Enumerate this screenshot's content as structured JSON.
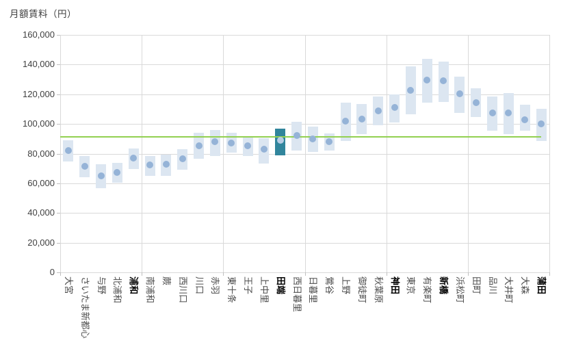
{
  "title": "月額賃料（円）",
  "chart_data": {
    "type": "bar",
    "subtype": "floating-range-bars-with-median-dot",
    "title": "月額賃料（円）",
    "xlabel": "",
    "ylabel": "月額賃料（円）",
    "ylim": [
      0,
      160000
    ],
    "ytick_step": 20000,
    "y_tick_labels": [
      "0",
      "20,000",
      "40,000",
      "60,000",
      "80,000",
      "100,000",
      "120,000",
      "140,000",
      "160,000"
    ],
    "grid": true,
    "legend_position": "none",
    "reference_line": {
      "value": 91500,
      "color": "#92D050",
      "extent_fraction": 0.983
    },
    "highlight_station": "田端",
    "categories": [
      "大宮",
      "さいたま新都心",
      "与野",
      "北浦和",
      "浦和",
      "南浦和",
      "蕨",
      "西川口",
      "川口",
      "赤羽",
      "東十条",
      "王子",
      "上中里",
      "田端",
      "西日暮里",
      "日暮里",
      "鶯谷",
      "上野",
      "御徒町",
      "秋葉原",
      "神田",
      "東京",
      "有楽町",
      "新橋",
      "浜松町",
      "田町",
      "品川",
      "大井町",
      "大森",
      "蒲田"
    ],
    "bold_categories": [
      "浦和",
      "田端",
      "神田",
      "新橋",
      "蒲田"
    ],
    "series": [
      {
        "name": "range_min",
        "values": [
          74500,
          64000,
          56500,
          60500,
          69500,
          65000,
          65000,
          69000,
          76500,
          78500,
          80500,
          78500,
          73500,
          79000,
          82000,
          81000,
          82000,
          88500,
          93000,
          99000,
          101000,
          106500,
          114500,
          115000,
          107500,
          104500,
          95500,
          93000,
          95500,
          88500
        ]
      },
      {
        "name": "median",
        "values": [
          82000,
          71500,
          65000,
          67500,
          77000,
          72500,
          73000,
          76500,
          85500,
          88000,
          87000,
          85500,
          83000,
          89000,
          92000,
          90000,
          88000,
          102000,
          103500,
          109000,
          111000,
          122500,
          129500,
          129000,
          120500,
          114500,
          107500,
          107500,
          103000,
          100000
        ]
      },
      {
        "name": "range_max",
        "values": [
          89000,
          78500,
          73000,
          74000,
          83500,
          78500,
          79500,
          83000,
          94000,
          96000,
          94000,
          91000,
          90500,
          97000,
          101500,
          98000,
          93500,
          114500,
          113500,
          118500,
          120000,
          139000,
          144000,
          142000,
          132000,
          124000,
          118500,
          121000,
          113000,
          110000
        ]
      }
    ]
  },
  "colors": {
    "bar_fill": "#DCE6F1",
    "bar_highlight": "#31859C",
    "dot": "#95B3D7",
    "dot_on_highlight": "#B7CCE4",
    "reference_line": "#92D050",
    "gridline": "#D9D9D9",
    "axis_text": "#404040"
  }
}
